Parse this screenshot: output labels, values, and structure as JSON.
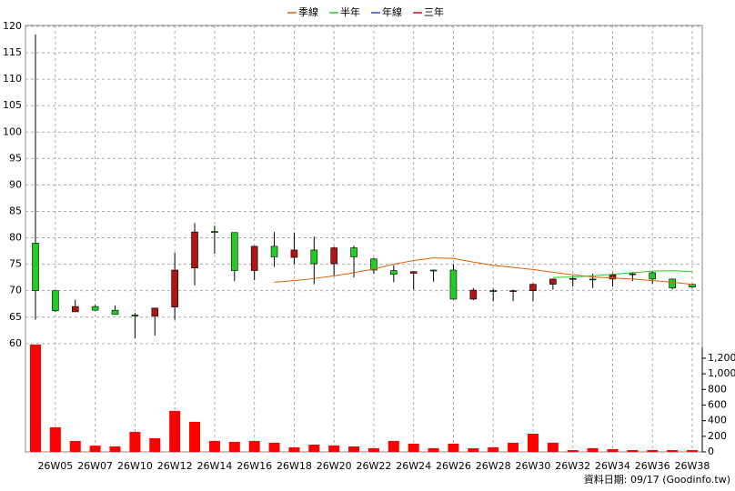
{
  "chart_data": {
    "type": "candlestick",
    "categories": [
      null,
      "26W05",
      null,
      "26W07",
      null,
      "26W10",
      null,
      "26W12",
      null,
      "26W14",
      null,
      "26W16",
      null,
      "26W18",
      null,
      "26W20",
      null,
      "26W22",
      null,
      "26W24",
      null,
      "26W26",
      null,
      "26W28",
      null,
      "26W30",
      null,
      "26W32",
      null,
      "26W34",
      null,
      "26W36",
      null,
      "26W38"
    ],
    "open": [
      79,
      70,
      66,
      67,
      66.3,
      65.4,
      65.2,
      66.9,
      74.3,
      81.2,
      81,
      73.8,
      78.4,
      76.3,
      77.7,
      75.1,
      78.1,
      76,
      73.8,
      73.3,
      73.9,
      73.9,
      68.4,
      70,
      69.9,
      70,
      71.2,
      72.2,
      72.2,
      72.2,
      73.1,
      73.4,
      72.2,
      71.2
    ],
    "high": [
      118.5,
      70,
      68.3,
      67.3,
      67.2,
      65.8,
      66.8,
      77.2,
      82.8,
      82.3,
      81,
      78.5,
      81.1,
      81,
      80.2,
      78.3,
      78.5,
      76.2,
      74.8,
      73.7,
      74,
      75,
      70.5,
      70.4,
      70.2,
      71.4,
      72.3,
      72.8,
      73.2,
      73.3,
      73.5,
      73.6,
      72.3,
      71.3
    ],
    "low": [
      64.5,
      66,
      66,
      66.3,
      65.5,
      61,
      61.5,
      64.5,
      71,
      77,
      71.8,
      72,
      74.5,
      75,
      71.2,
      72.8,
      72.5,
      73.2,
      71.6,
      70.2,
      71.7,
      68.3,
      68.2,
      68,
      68,
      68,
      70.2,
      70.8,
      70.5,
      70.8,
      71.8,
      71.3,
      70.2,
      70.5
    ],
    "close": [
      70,
      66.2,
      67,
      66.3,
      65.5,
      65.2,
      66.7,
      73.9,
      81.1,
      81,
      73.8,
      78.4,
      76.4,
      77.7,
      75.1,
      78.1,
      76.4,
      73.9,
      73.1,
      73.6,
      73.8,
      68.4,
      70.1,
      69.9,
      70,
      71.2,
      72.2,
      72.3,
      72.1,
      73,
      73.2,
      72.2,
      70.5,
      70.7
    ],
    "up_color": "#b01515",
    "down_color": "#22cc22",
    "volume": {
      "axis": "y2",
      "color": "#ff0000",
      "values": [
        1375,
        315,
        140,
        80,
        70,
        256,
        175,
        525,
        385,
        140,
        128,
        140,
        117,
        58,
        93,
        82,
        70,
        47,
        140,
        105,
        47,
        105,
        47,
        58,
        117,
        233,
        117,
        23,
        47,
        35,
        23,
        23,
        23,
        23
      ]
    },
    "series": [
      {
        "name": "季線",
        "color": "#e06000",
        "values": [
          null,
          null,
          null,
          null,
          null,
          null,
          null,
          null,
          null,
          null,
          null,
          null,
          71.6,
          71.9,
          72.3,
          72.8,
          73.4,
          74.1,
          75,
          75.7,
          76.2,
          76.1,
          75.4,
          74.8,
          74.4,
          74,
          73.5,
          73,
          72.6,
          72.4,
          72.2,
          71.9,
          71.6,
          71.2
        ]
      },
      {
        "name": "半年",
        "color": "#22cc22",
        "values": [
          null,
          null,
          null,
          null,
          null,
          null,
          null,
          null,
          null,
          null,
          null,
          null,
          null,
          null,
          null,
          null,
          null,
          null,
          null,
          null,
          null,
          null,
          null,
          null,
          null,
          null,
          72.5,
          72.6,
          72.8,
          73.1,
          73.4,
          73.7,
          73.8,
          73.6
        ]
      },
      {
        "name": "年線",
        "color": "#1f4fd0",
        "values": [
          null,
          null,
          null,
          null,
          null,
          null,
          null,
          null,
          null,
          null,
          null,
          null,
          null,
          null,
          null,
          null,
          null,
          null,
          null,
          null,
          null,
          null,
          null,
          null,
          null,
          null,
          null,
          null,
          null,
          null,
          null,
          null,
          null,
          null
        ]
      },
      {
        "name": "三年",
        "color": "#d01010",
        "values": [
          null,
          null,
          null,
          null,
          null,
          null,
          null,
          null,
          null,
          null,
          null,
          null,
          null,
          null,
          null,
          null,
          null,
          null,
          null,
          null,
          null,
          null,
          null,
          null,
          null,
          null,
          null,
          null,
          null,
          null,
          null,
          null,
          null,
          null
        ]
      }
    ],
    "ylim": [
      39.5,
      120
    ],
    "yticks": [
      60,
      65,
      70,
      75,
      80,
      85,
      90,
      95,
      100,
      105,
      110,
      115,
      120
    ],
    "y2lim": [
      0,
      5450
    ],
    "y2ticks": [
      0,
      200,
      400,
      600,
      800,
      {
        "value": 1000,
        "label": "1,000"
      },
      {
        "value": 1200,
        "label": "1,200"
      }
    ],
    "grid": true,
    "legend": "top",
    "footer": "資料日期: 09/17  (Goodinfo.tw)"
  }
}
